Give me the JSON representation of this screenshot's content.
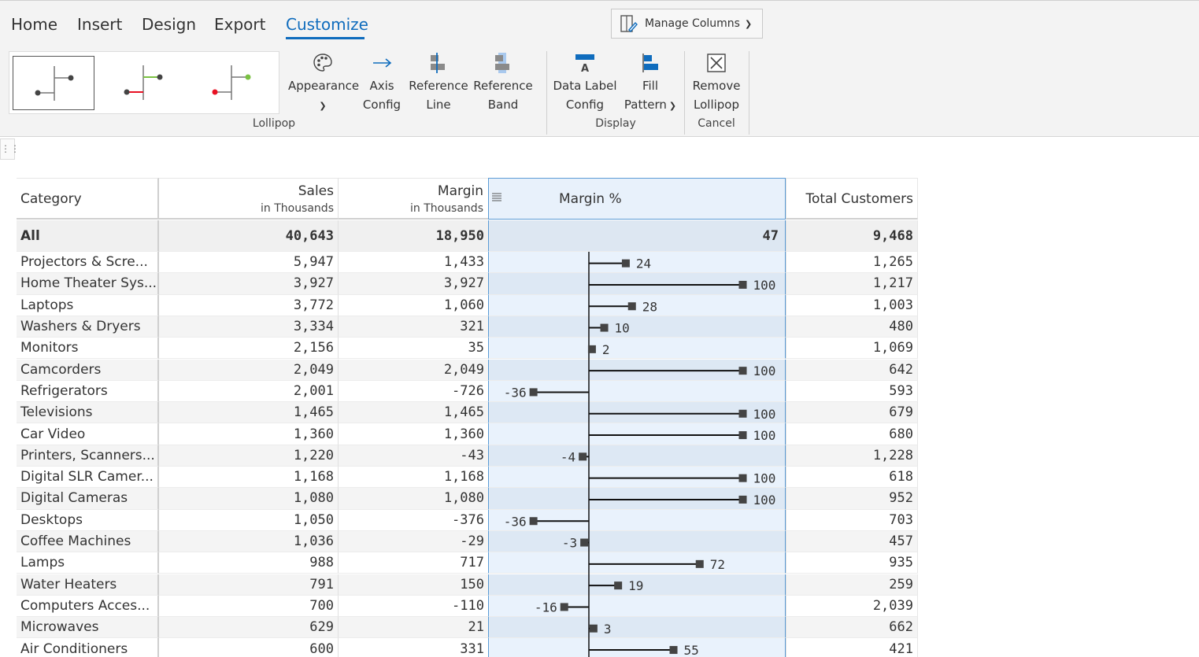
{
  "tabs": [
    {
      "label": "Home",
      "active": false
    },
    {
      "label": "Insert",
      "active": false
    },
    {
      "label": "Design",
      "active": false
    },
    {
      "label": "Export",
      "active": false
    },
    {
      "label": "Customize",
      "active": true
    }
  ],
  "manage_columns": {
    "label": "Manage Columns"
  },
  "ribbon": {
    "appearance": "Appearance",
    "axis_config": [
      "Axis",
      "Config"
    ],
    "reference_line": [
      "Reference",
      "Line"
    ],
    "reference_band": [
      "Reference",
      "Band"
    ],
    "data_label_config": [
      "Data Label",
      "Config"
    ],
    "fill_pattern": [
      "Fill",
      "Pattern"
    ],
    "remove_lollipop": [
      "Remove",
      "Lollipop"
    ],
    "groups": {
      "lollipop": "Lollipop",
      "display": "Display",
      "cancel": "Cancel"
    },
    "colors": {
      "accent": "#0f6cbd",
      "red": "#e81123",
      "green": "#7ac142",
      "marker": "#444444"
    }
  },
  "table": {
    "headers": {
      "category": "Category",
      "sales": "Sales",
      "sales_sub": "in Thousands",
      "margin": "Margin",
      "margin_sub": "in Thousands",
      "margin_pct": "Margin %",
      "customers": "Total Customers"
    },
    "total": {
      "category": "All",
      "sales": "40,643",
      "margin": "18,950",
      "margin_pct": "47",
      "customers": "9,468"
    },
    "rows": [
      {
        "category": "Projectors & Scre...",
        "sales": "5,947",
        "margin": "1,433",
        "pct": 24,
        "customers": "1,265"
      },
      {
        "category": "Home Theater Sys...",
        "sales": "3,927",
        "margin": "3,927",
        "pct": 100,
        "customers": "1,217"
      },
      {
        "category": "Laptops",
        "sales": "3,772",
        "margin": "1,060",
        "pct": 28,
        "customers": "1,003"
      },
      {
        "category": "Washers & Dryers",
        "sales": "3,334",
        "margin": "321",
        "pct": 10,
        "customers": "480"
      },
      {
        "category": "Monitors",
        "sales": "2,156",
        "margin": "35",
        "pct": 2,
        "customers": "1,069"
      },
      {
        "category": "Camcorders",
        "sales": "2,049",
        "margin": "2,049",
        "pct": 100,
        "customers": "642"
      },
      {
        "category": "Refrigerators",
        "sales": "2,001",
        "margin": "-726",
        "pct": -36,
        "customers": "593"
      },
      {
        "category": "Televisions",
        "sales": "1,465",
        "margin": "1,465",
        "pct": 100,
        "customers": "679"
      },
      {
        "category": "Car Video",
        "sales": "1,360",
        "margin": "1,360",
        "pct": 100,
        "customers": "680"
      },
      {
        "category": "Printers, Scanners...",
        "sales": "1,220",
        "margin": "-43",
        "pct": -4,
        "customers": "1,228"
      },
      {
        "category": "Digital SLR Camer...",
        "sales": "1,168",
        "margin": "1,168",
        "pct": 100,
        "customers": "618"
      },
      {
        "category": "Digital Cameras",
        "sales": "1,080",
        "margin": "1,080",
        "pct": 100,
        "customers": "952"
      },
      {
        "category": "Desktops",
        "sales": "1,050",
        "margin": "-376",
        "pct": -36,
        "customers": "703"
      },
      {
        "category": "Coffee Machines",
        "sales": "1,036",
        "margin": "-29",
        "pct": -3,
        "customers": "457"
      },
      {
        "category": "Lamps",
        "sales": "988",
        "margin": "717",
        "pct": 72,
        "customers": "935"
      },
      {
        "category": "Water Heaters",
        "sales": "791",
        "margin": "150",
        "pct": 19,
        "customers": "259"
      },
      {
        "category": "Computers Acces...",
        "sales": "700",
        "margin": "-110",
        "pct": -16,
        "customers": "2,039"
      },
      {
        "category": "Microwaves",
        "sales": "629",
        "margin": "21",
        "pct": 3,
        "customers": "662"
      },
      {
        "category": "Air Conditioners",
        "sales": "600",
        "margin": "331",
        "pct": 55,
        "customers": "421"
      }
    ]
  }
}
